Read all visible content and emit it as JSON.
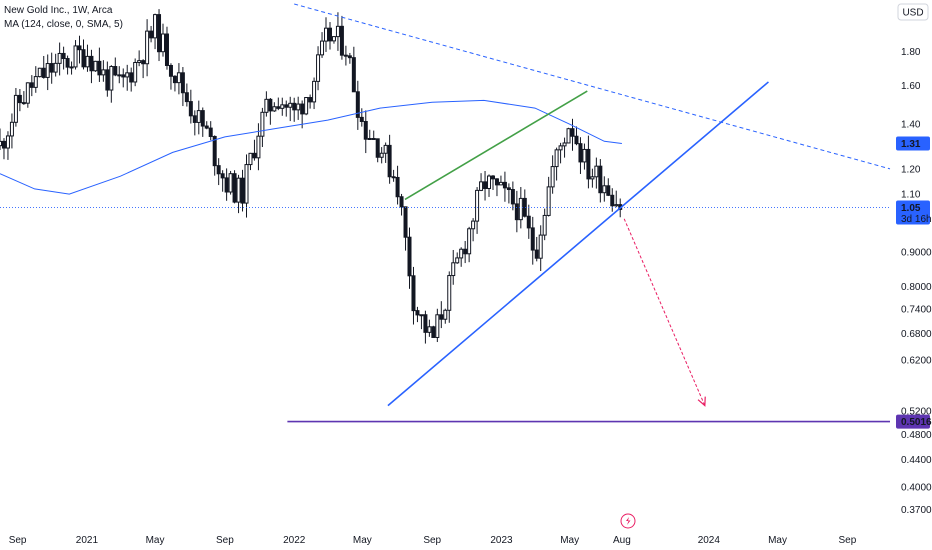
{
  "legend": {
    "symbol_line": "New Gold Inc., 1W, Arca",
    "ma_line": "MA (124, close, 0, SMA, 5)"
  },
  "currency": "USD",
  "colors": {
    "candle": "#131722",
    "ma": "#2962ff",
    "support": "#2962ff",
    "upper_channel": "#43a047",
    "downtrend": "#2962ff",
    "target_line": "#5e35b1",
    "projection_arrow": "#e91e63",
    "price_badge": "#2962ff",
    "target_badge": "#5e35b1"
  },
  "chart_data": {
    "type": "candlestick",
    "scale": "log",
    "ylim": [
      0.345,
      2.12
    ],
    "y_ticks": [
      "1.80",
      "1.60",
      "1.40",
      "1.20",
      "1.10",
      "0.9000",
      "0.8000",
      "0.7400",
      "0.6800",
      "0.6200",
      "0.5200",
      "0.4800",
      "0.4400",
      "0.4000",
      "0.3700"
    ],
    "y_tick_values": [
      1.8,
      1.6,
      1.4,
      1.2,
      1.1,
      0.9,
      0.8,
      0.74,
      0.68,
      0.62,
      0.52,
      0.48,
      0.44,
      0.4,
      0.37
    ],
    "x_range": [
      "2020-08-01",
      "2024-11-15"
    ],
    "x_ticks": [
      {
        "label": "Sep",
        "date": "2020-09-01"
      },
      {
        "label": "2021",
        "date": "2021-01-01"
      },
      {
        "label": "May",
        "date": "2021-05-01"
      },
      {
        "label": "Sep",
        "date": "2021-09-01"
      },
      {
        "label": "2022",
        "date": "2022-01-01"
      },
      {
        "label": "May",
        "date": "2022-05-01"
      },
      {
        "label": "Sep",
        "date": "2022-09-01"
      },
      {
        "label": "2023",
        "date": "2023-01-01"
      },
      {
        "label": "May",
        "date": "2023-05-01"
      },
      {
        "label": "Aug",
        "date": "2023-08-01"
      },
      {
        "label": "2024",
        "date": "2024-01-01"
      },
      {
        "label": "May",
        "date": "2024-05-01"
      },
      {
        "label": "Sep",
        "date": "2024-09-01"
      }
    ],
    "price_path": [
      [
        "2020-08-01",
        1.3
      ],
      [
        "2020-09-01",
        1.5
      ],
      [
        "2020-10-01",
        1.62
      ],
      [
        "2020-11-01",
        1.7
      ],
      [
        "2021-01-01",
        1.8
      ],
      [
        "2021-02-01",
        1.65
      ],
      [
        "2021-03-01",
        1.6
      ],
      [
        "2021-04-01",
        1.75
      ],
      [
        "2021-05-01",
        1.95
      ],
      [
        "2021-06-01",
        1.7
      ],
      [
        "2021-07-01",
        1.5
      ],
      [
        "2021-08-01",
        1.35
      ],
      [
        "2021-09-01",
        1.15
      ],
      [
        "2021-10-01",
        1.1
      ],
      [
        "2021-11-01",
        1.4
      ],
      [
        "2021-12-01",
        1.55
      ],
      [
        "2022-01-01",
        1.45
      ],
      [
        "2022-02-01",
        1.6
      ],
      [
        "2022-03-01",
        1.9
      ],
      [
        "2022-04-01",
        1.85
      ],
      [
        "2022-05-01",
        1.4
      ],
      [
        "2022-06-01",
        1.3
      ],
      [
        "2022-07-01",
        1.15
      ],
      [
        "2022-08-01",
        0.75
      ],
      [
        "2022-09-01",
        0.66
      ],
      [
        "2022-10-01",
        0.8
      ],
      [
        "2022-11-01",
        0.95
      ],
      [
        "2022-12-01",
        1.15
      ],
      [
        "2023-01-01",
        1.1
      ],
      [
        "2023-02-01",
        1.05
      ],
      [
        "2023-03-01",
        0.9
      ],
      [
        "2023-04-01",
        1.2
      ],
      [
        "2023-05-01",
        1.42
      ],
      [
        "2023-06-01",
        1.2
      ],
      [
        "2023-07-01",
        1.15
      ],
      [
        "2023-08-01",
        1.05
      ]
    ],
    "series": [
      {
        "name": "MA (124, close, 0, SMA, 5)",
        "points": [
          [
            "2020-08-01",
            1.18
          ],
          [
            "2020-10-01",
            1.12
          ],
          [
            "2020-12-01",
            1.1
          ],
          [
            "2021-03-01",
            1.17
          ],
          [
            "2021-06-01",
            1.27
          ],
          [
            "2021-09-01",
            1.34
          ],
          [
            "2021-12-01",
            1.38
          ],
          [
            "2022-03-01",
            1.42
          ],
          [
            "2022-06-01",
            1.48
          ],
          [
            "2022-09-01",
            1.51
          ],
          [
            "2022-12-01",
            1.52
          ],
          [
            "2023-03-01",
            1.48
          ],
          [
            "2023-05-01",
            1.4
          ],
          [
            "2023-07-01",
            1.32
          ],
          [
            "2023-08-01",
            1.31
          ]
        ]
      }
    ],
    "drawings": [
      {
        "name": "support-trendline",
        "from": [
          "2022-06-15",
          0.53
        ],
        "to": [
          "2024-04-15",
          1.62
        ]
      },
      {
        "name": "upper-channel-line",
        "from": [
          "2022-07-15",
          1.08
        ],
        "to": [
          "2023-06-01",
          1.57
        ]
      },
      {
        "name": "downtrend-line",
        "from": [
          "2022-01-01",
          2.12
        ],
        "to": [
          "2024-11-15",
          1.2
        ]
      },
      {
        "name": "target-line",
        "from": [
          "2021-12-20",
          0.5016
        ],
        "to": [
          "2024-11-15",
          0.5016
        ]
      },
      {
        "name": "projection-arrow",
        "from": [
          "2023-08-05",
          1.01
        ],
        "to": [
          "2023-12-25",
          0.53
        ]
      }
    ],
    "annotations": [
      {
        "label": "1.31",
        "value": 1.31,
        "kind": "ma-price"
      },
      {
        "label": "1.05",
        "value": 1.05,
        "kind": "last-price",
        "countdown": "3d 16h"
      },
      {
        "label": "0.5016",
        "value": 0.5016,
        "kind": "target"
      }
    ]
  }
}
